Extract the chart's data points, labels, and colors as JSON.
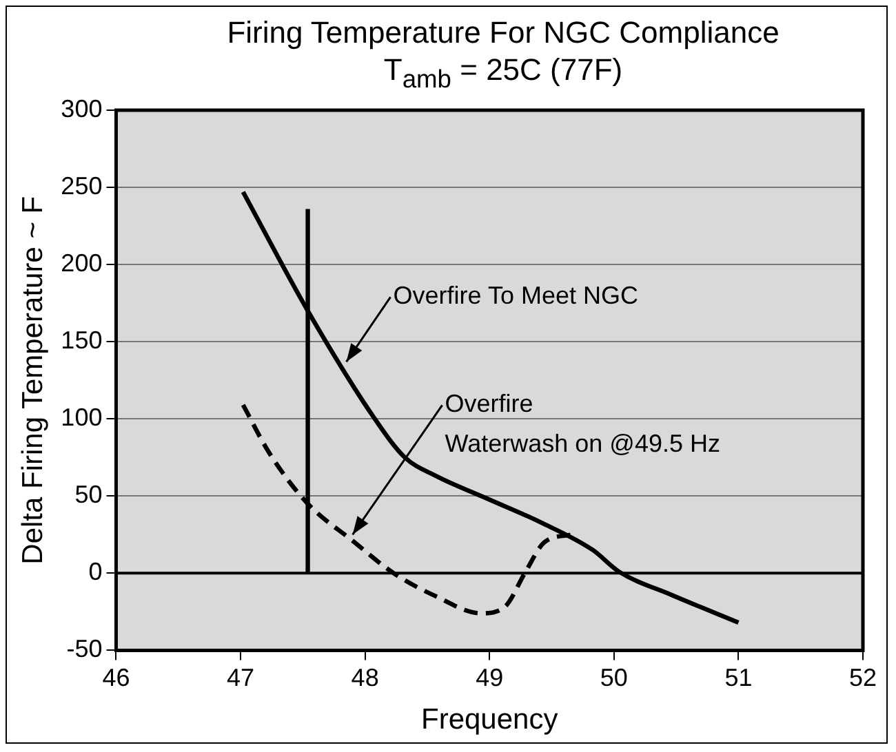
{
  "chart_data": {
    "type": "line",
    "title": "Firing Temperature For NGC Compliance",
    "subtitle": "T$_{amb}$ = 25C (77F)",
    "xlabel": "Frequency",
    "ylabel": "Delta Firing Temperature ~ F",
    "series": [
      {
        "color": "#000000",
        "line_style": "solid",
        "x": [
          47.02,
          47.54,
          48.07,
          48.32,
          48.57,
          48.99,
          49.41,
          49.83,
          50.04,
          50.46,
          51.0
        ],
        "values": [
          247,
          170,
          101,
          75,
          63,
          48,
          33,
          15,
          1,
          -14,
          -32
        ]
      },
      {
        "color": "#000000",
        "line_style": "dashed",
        "x": [
          47.02,
          47.23,
          47.54,
          47.9,
          48.23,
          48.57,
          48.93,
          49.12,
          49.29,
          49.44,
          49.66
        ],
        "values": [
          109,
          78,
          45,
          21,
          0,
          -15,
          -26,
          -22,
          1,
          20,
          25
        ]
      },
      {
        "color": "#000000",
        "line_style": "solid",
        "x": [
          47.54,
          47.54
        ],
        "values": [
          0,
          236
        ]
      }
    ],
    "xlim": [
      46,
      52
    ],
    "xticks": [
      46,
      47,
      48,
      49,
      50,
      51,
      52
    ],
    "ylim": [
      -50,
      300
    ],
    "yticks": [
      -50,
      0,
      50,
      100,
      150,
      200,
      250,
      300
    ],
    "grid": "y",
    "legend": false,
    "marker": "none",
    "ref_lines": [
      {
        "axis": "y",
        "value": 0,
        "color": "#000000"
      }
    ],
    "annotations": [
      {
        "text": "Overfire To Meet NGC",
        "x": 47.85,
        "y": 137
      },
      {
        "text": "Overfire\nWaterwash on @49.5 Hz",
        "x": 47.9,
        "y": 25
      }
    ]
  }
}
